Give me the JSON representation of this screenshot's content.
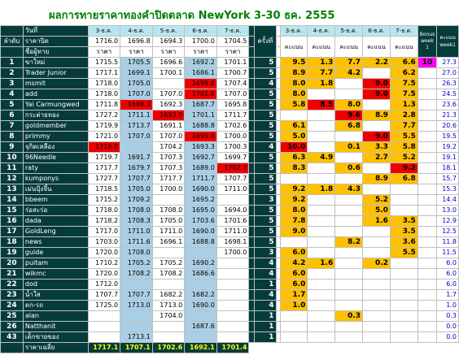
{
  "title": "ผลการทายราคาทองคำปิดตลาด NewYork 3-30 ธค. 2555",
  "header": {
    "row1_label": "วันที่",
    "row2_rank": "ลำดับ",
    "row2_label": "ราคาปิด",
    "row3_label": "ชื่อผู้ทาย",
    "price_col_label": "ราคา",
    "week_label1": "ครั้งที่",
    "week_label2": "week",
    "score_col_label": "คะแนน",
    "bonus_label": "Bonus week 1",
    "total_label": "คะแนน week1",
    "dates": [
      "3-ธ.ค.",
      "4-ธ.ค.",
      "5-ธ.ค.",
      "6-ธ.ค.",
      "7-ธ.ค."
    ],
    "score_dates": [
      "3-ธ.ค.",
      "4-ธ.ค.",
      "5-ธ.ค.",
      "6-ธ.ค.",
      "7-ธ.ค."
    ],
    "close_prices": [
      "1716.0",
      "1696.8",
      "1694.3",
      "1700.0",
      "1704.5"
    ]
  },
  "rows": [
    {
      "no": "1",
      "name": "ขาใหม่",
      "prices": [
        "1715.5",
        "1705.5",
        "1696.6",
        "1692.2",
        "1701.1"
      ],
      "red": [],
      "week": "5",
      "scores": [
        "9.5",
        "1.3",
        "7.7",
        "2.2",
        "6.6"
      ],
      "orange": [
        0,
        1,
        2,
        3,
        4
      ],
      "redscore": [],
      "bonus": "10",
      "total": "27.3"
    },
    {
      "no": "2",
      "name": "Trader Junior",
      "prices": [
        "1717.1",
        "1699.1",
        "1700.1",
        "1686.1",
        "1700.7"
      ],
      "red": [],
      "week": "5",
      "scores": [
        "8.9",
        "7.7",
        "4.2",
        "",
        "6.2"
      ],
      "orange": [
        0,
        1,
        2,
        4
      ],
      "redscore": [],
      "bonus": "",
      "total": "27.0"
    },
    {
      "no": "3",
      "name": "msmit",
      "prices": [
        "1718.0",
        "1705.0",
        "",
        "1699.0",
        "1707.4"
      ],
      "red": [
        3
      ],
      "week": "4",
      "scores": [
        "8.0",
        "1.8",
        "",
        "9.0",
        "7.5"
      ],
      "orange": [
        0,
        1,
        4
      ],
      "redscore": [
        3
      ],
      "bonus": "",
      "total": "26.3"
    },
    {
      "no": "4",
      "name": "add",
      "prices": [
        "1718.0",
        "1707.0",
        "1707.0",
        "1701.0",
        "1707.0"
      ],
      "red": [
        3
      ],
      "week": "5",
      "scores": [
        "8.0",
        "",
        "",
        "9.0",
        "7.5"
      ],
      "orange": [
        0,
        4
      ],
      "redscore": [
        3
      ],
      "bonus": "",
      "total": "24.5"
    },
    {
      "no": "5",
      "name": "Yai Carmungwed",
      "prices": [
        "1711.8",
        "1698.3",
        "1692.3",
        "1687.7",
        "1695.8"
      ],
      "red": [
        1
      ],
      "week": "5",
      "scores": [
        "5.8",
        "8.5",
        "8.0",
        "",
        "1.3"
      ],
      "orange": [
        0,
        2,
        4
      ],
      "redscore": [
        1
      ],
      "bonus": "",
      "total": "23.6"
    },
    {
      "no": "6",
      "name": "กระต่ายทอง",
      "prices": [
        "1727.2",
        "1711.1",
        "1693.9",
        "1701.1",
        "1711.7"
      ],
      "red": [
        2
      ],
      "week": "5",
      "scores": [
        "",
        "",
        "9.6",
        "8.9",
        "2.8"
      ],
      "orange": [
        3,
        4
      ],
      "redscore": [
        2
      ],
      "bonus": "",
      "total": "21.3"
    },
    {
      "no": "7",
      "name": "goldmember",
      "prices": [
        "1719.9",
        "1713.7",
        "1691.1",
        "1688.8",
        "1702.6"
      ],
      "red": [],
      "week": "5",
      "scores": [
        "6.1",
        "",
        "6.8",
        "",
        "7.7"
      ],
      "orange": [
        0,
        2,
        4
      ],
      "redscore": [],
      "bonus": "",
      "total": "20.6"
    },
    {
      "no": "8",
      "name": "primmy",
      "prices": [
        "1721.0",
        "1707.0",
        "1707.0",
        "1699.0",
        "1700.0"
      ],
      "red": [
        3
      ],
      "week": "5",
      "scores": [
        "5.0",
        "",
        "",
        "9.0",
        "5.5"
      ],
      "orange": [
        0,
        4
      ],
      "redscore": [
        3
      ],
      "bonus": "",
      "total": "19.5"
    },
    {
      "no": "9",
      "name": "จุกิตเหลือง",
      "prices": [
        "1716.0",
        "",
        "1704.2",
        "1693.3",
        "1700.3"
      ],
      "red": [
        0
      ],
      "week": "4",
      "scores": [
        "10.0",
        "",
        "0.1",
        "3.3",
        "5.8"
      ],
      "orange": [
        2,
        3,
        4
      ],
      "redscore": [
        0
      ],
      "bonus": "",
      "total": "19.2"
    },
    {
      "no": "10",
      "name": "96Needle",
      "prices": [
        "1719.7",
        "1691.7",
        "1707.3",
        "1692.7",
        "1699.7"
      ],
      "red": [],
      "week": "5",
      "scores": [
        "6.3",
        "4.9",
        "",
        "2.7",
        "5.2"
      ],
      "orange": [
        0,
        1,
        3,
        4
      ],
      "redscore": [],
      "bonus": "",
      "total": "19.1"
    },
    {
      "no": "11",
      "name": "raty",
      "prices": [
        "1717.7",
        "1679.7",
        "1707.3",
        "1689.0",
        "1702.7"
      ],
      "red": [
        4
      ],
      "week": "5",
      "scores": [
        "8.3",
        "",
        "0.6",
        "",
        "9.2"
      ],
      "orange": [
        0,
        2
      ],
      "redscore": [
        4
      ],
      "bonus": "",
      "total": "18.1"
    },
    {
      "no": "12",
      "name": "kumponys",
      "prices": [
        "1727.7",
        "1707.7",
        "1717.7",
        "1711.7",
        "1707.7"
      ],
      "red": [],
      "week": "5",
      "scores": [
        "",
        "",
        "",
        "8.9",
        "6.8"
      ],
      "orange": [
        3,
        4
      ],
      "redscore": [],
      "bonus": "",
      "total": "15.7"
    },
    {
      "no": "13",
      "name": "เม่นปุ้งจึ้น",
      "prices": [
        "1718.5",
        "1705.0",
        "1700.0",
        "1690.0",
        "1711.0"
      ],
      "red": [],
      "week": "5",
      "scores": [
        "9.2",
        "1.8",
        "4.3",
        "",
        ""
      ],
      "orange": [
        0,
        1,
        2
      ],
      "redscore": [],
      "bonus": "",
      "total": "15.3"
    },
    {
      "no": "14",
      "name": "bbeem",
      "prices": [
        "1715.2",
        "1709.2",
        "",
        "1695.2",
        ""
      ],
      "red": [],
      "week": "3",
      "scores": [
        "9.2",
        "",
        "",
        "5.2",
        ""
      ],
      "orange": [
        0,
        3
      ],
      "redscore": [],
      "bonus": "",
      "total": "14.4"
    },
    {
      "no": "15",
      "name": "ร่อสะร่อ",
      "prices": [
        "1718.0",
        "1708.0",
        "1708.0",
        "1695.0",
        "1694.0"
      ],
      "red": [],
      "week": "5",
      "scores": [
        "8.0",
        "",
        "",
        "5.0",
        ""
      ],
      "orange": [
        0,
        3
      ],
      "redscore": [],
      "bonus": "",
      "total": "13.0"
    },
    {
      "no": "16",
      "name": "dada",
      "prices": [
        "1718.2",
        "1708.3",
        "1705.0",
        "1703.6",
        "1701.6"
      ],
      "red": [],
      "week": "5",
      "scores": [
        "7.8",
        "",
        "",
        "1.6",
        "3.5"
      ],
      "orange": [
        0,
        3,
        4
      ],
      "redscore": [],
      "bonus": "",
      "total": "12.9"
    },
    {
      "no": "17",
      "name": "GoldLeng",
      "prices": [
        "1717.0",
        "1711.0",
        "1711.0",
        "1690.0",
        "1711.0"
      ],
      "red": [],
      "week": "5",
      "scores": [
        "9.0",
        "",
        "",
        "",
        "3.5"
      ],
      "orange": [
        0,
        4
      ],
      "redscore": [],
      "bonus": "",
      "total": "12.5"
    },
    {
      "no": "18",
      "name": "news",
      "prices": [
        "1703.0",
        "1711.6",
        "1696.1",
        "1688.8",
        "1698.1"
      ],
      "red": [],
      "week": "5",
      "scores": [
        "",
        "",
        "8.2",
        "",
        "3.6"
      ],
      "orange": [
        2,
        4
      ],
      "redscore": [],
      "bonus": "",
      "total": "11.8"
    },
    {
      "no": "19",
      "name": "guide",
      "prices": [
        "1720.0",
        "1708.0",
        "",
        "",
        "1700.0"
      ],
      "red": [],
      "week": "3",
      "scores": [
        "6.0",
        "",
        "",
        "",
        "5.5"
      ],
      "orange": [
        0,
        4
      ],
      "redscore": [],
      "bonus": "",
      "total": "11.5"
    },
    {
      "no": "20",
      "name": "puitam",
      "prices": [
        "1710.2",
        "1705.2",
        "1705.2",
        "1690.2",
        ""
      ],
      "red": [],
      "week": "4",
      "scores": [
        "4.2",
        "1.6",
        "",
        "0.2",
        ""
      ],
      "orange": [
        0,
        1,
        3
      ],
      "redscore": [],
      "bonus": "",
      "total": "6.0"
    },
    {
      "no": "21",
      "name": "wikmc",
      "prices": [
        "1720.0",
        "1708.2",
        "1708.2",
        "1686.6",
        ""
      ],
      "red": [],
      "week": "4",
      "scores": [
        "6.0",
        "",
        "",
        "",
        ""
      ],
      "orange": [
        0
      ],
      "redscore": [],
      "bonus": "",
      "total": "6.0"
    },
    {
      "no": "22",
      "name": "dod",
      "prices": [
        "1712.0",
        "",
        "",
        "",
        ""
      ],
      "red": [],
      "week": "1",
      "scores": [
        "6.0",
        "",
        "",
        "",
        ""
      ],
      "orange": [
        0
      ],
      "redscore": [],
      "bonus": "",
      "total": "6.0"
    },
    {
      "no": "23",
      "name": "น้ำใส",
      "prices": [
        "1707.7",
        "1707.7",
        "1682.2",
        "1682.2",
        ""
      ],
      "red": [],
      "week": "4",
      "scores": [
        "1.7",
        "",
        "",
        "",
        ""
      ],
      "orange": [
        0
      ],
      "redscore": [],
      "bonus": "",
      "total": "1.7"
    },
    {
      "no": "24",
      "name": "ตก-รถ",
      "prices": [
        "1725.0",
        "1713.0",
        "1713.0",
        "1690.0",
        ""
      ],
      "red": [],
      "week": "4",
      "scores": [
        "1.0",
        "",
        "",
        "",
        ""
      ],
      "orange": [
        0
      ],
      "redscore": [],
      "bonus": "",
      "total": "1.0"
    },
    {
      "no": "25",
      "name": "alan",
      "prices": [
        "",
        "",
        "1704.0",
        "",
        ""
      ],
      "red": [],
      "week": "1",
      "scores": [
        "",
        "",
        "0.3",
        "",
        ""
      ],
      "orange": [
        2
      ],
      "redscore": [],
      "bonus": "",
      "total": "0.3"
    },
    {
      "no": "26",
      "name": "Natthanit",
      "prices": [
        "",
        "",
        "",
        "1687.6",
        ""
      ],
      "red": [],
      "week": "1",
      "scores": [
        "",
        "",
        "",
        "",
        ""
      ],
      "orange": [],
      "redscore": [],
      "bonus": "",
      "total": "0.0"
    },
    {
      "no": "43",
      "name": "เด็กขายของ",
      "prices": [
        "",
        "1713.1",
        "",
        "",
        ""
      ],
      "red": [],
      "week": "1",
      "scores": [
        "",
        "",
        "",
        "",
        ""
      ],
      "orange": [],
      "redscore": [],
      "bonus": "",
      "total": "0.0"
    }
  ],
  "footer": {
    "label": "ราคาเฉลี่ย",
    "averages": [
      "1717.1",
      "1707.1",
      "1702.6",
      "1692.1",
      "1701.4"
    ]
  },
  "colors": {
    "dark_teal": "#063b3b",
    "price_blue": "#a9cfe6",
    "score_orange": "#ffc000",
    "highlight_red": "#ee0000",
    "bonus_magenta": "#ff00ff",
    "title_green": "#008000",
    "average_yellow": "#ffff00"
  }
}
